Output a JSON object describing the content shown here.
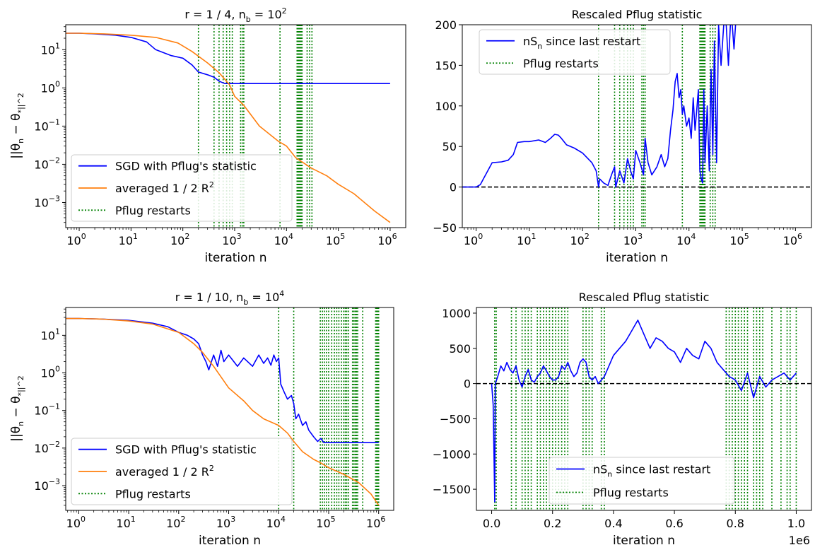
{
  "chart_data": [
    {
      "type": "line",
      "title": "r = 1 / 4, n_b = 10^2",
      "xlabel": "iteration n",
      "ylabel": "||θ_n − θ_*||^2",
      "xscale": "log",
      "yscale": "log",
      "xlim": [
        0.55,
        2000000
      ],
      "ylim": [
        0.00022,
        45
      ],
      "xticks": [
        {
          "value": 1,
          "label": "10",
          "exp": "0"
        },
        {
          "value": 10,
          "label": "10",
          "exp": "1"
        },
        {
          "value": 100,
          "label": "10",
          "exp": "2"
        },
        {
          "value": 1000,
          "label": "10",
          "exp": "3"
        },
        {
          "value": 10000,
          "label": "10",
          "exp": "4"
        },
        {
          "value": 100000,
          "label": "10",
          "exp": "5"
        },
        {
          "value": 1000000,
          "label": "10",
          "exp": "6"
        }
      ],
      "yticks": [
        {
          "value": 10,
          "label": "10",
          "exp": "1"
        },
        {
          "value": 1,
          "label": "10",
          "exp": "0"
        },
        {
          "value": 0.1,
          "label": "10",
          "exp": "−1"
        },
        {
          "value": 0.01,
          "label": "10",
          "exp": "−2"
        },
        {
          "value": 0.001,
          "label": "10",
          "exp": "−3"
        }
      ],
      "legend_position": "lower-left",
      "series": [
        {
          "name": "SGD with Pflug's statistic",
          "color": "#0000ff",
          "x": [
            0.55,
            1,
            2,
            5,
            10,
            20,
            30,
            60,
            100,
            150,
            200,
            300,
            400,
            500,
            600,
            650,
            1000000
          ],
          "y": [
            27,
            27,
            26,
            24,
            21,
            16,
            10,
            7,
            6,
            4,
            2.6,
            2.2,
            1.9,
            1.5,
            1.35,
            1.3,
            1.3
          ]
        },
        {
          "name": "averaged 1 / 2 R^2",
          "color": "#ff7f0e",
          "x": [
            0.55,
            1,
            3,
            10,
            30,
            80,
            150,
            300,
            500,
            800,
            1000,
            1500,
            3000,
            7000,
            10000,
            15000,
            30000,
            60000,
            100000,
            200000,
            500000,
            1000000
          ],
          "y": [
            27,
            27,
            26,
            24,
            21,
            15,
            9,
            4.5,
            2.5,
            1.2,
            0.6,
            0.35,
            0.1,
            0.04,
            0.03,
            0.015,
            0.008,
            0.005,
            0.003,
            0.0017,
            0.0006,
            0.0003
          ]
        },
        {
          "name": "Pflug restarts",
          "color": "#008000",
          "style": "dotted",
          "restart_x": [
            200,
            400,
            500,
            600,
            700,
            800,
            900,
            1300,
            1400,
            1500,
            7500,
            16000,
            16500,
            17000,
            17500,
            18000,
            18500,
            19000,
            19500,
            20000,
            25000,
            28000,
            31000
          ]
        }
      ]
    },
    {
      "type": "line",
      "title": "Rescaled Pflug statistic",
      "xlabel": "iteration n",
      "ylabel": "",
      "xscale": "log",
      "yscale": "linear",
      "xlim": [
        0.55,
        2000000
      ],
      "ylim": [
        -50,
        200
      ],
      "xticks": [
        {
          "value": 1,
          "label": "10",
          "exp": "0"
        },
        {
          "value": 10,
          "label": "10",
          "exp": "1"
        },
        {
          "value": 100,
          "label": "10",
          "exp": "2"
        },
        {
          "value": 1000,
          "label": "10",
          "exp": "3"
        },
        {
          "value": 10000,
          "label": "10",
          "exp": "4"
        },
        {
          "value": 100000,
          "label": "10",
          "exp": "5"
        },
        {
          "value": 1000000,
          "label": "10",
          "exp": "6"
        }
      ],
      "yticks": [
        {
          "value": 200,
          "label": "200"
        },
        {
          "value": 150,
          "label": "150"
        },
        {
          "value": 100,
          "label": "100"
        },
        {
          "value": 50,
          "label": "50"
        },
        {
          "value": 0,
          "label": "0"
        },
        {
          "value": -50,
          "label": "−50"
        }
      ],
      "hline": 0,
      "legend_position": "upper-left",
      "series": [
        {
          "name": "nS_n since last restart",
          "color": "#0000ff",
          "x": [
            0.55,
            1,
            1.2,
            2,
            3,
            4,
            5,
            6,
            8,
            10,
            15,
            20,
            25,
            30,
            35,
            40,
            50,
            70,
            100,
            150,
            180,
            200,
            210,
            250,
            300,
            350,
            400,
            420,
            500,
            600,
            700,
            800,
            900,
            1000,
            1200,
            1400,
            1500,
            1700,
            2000,
            2500,
            3000,
            3500,
            4000,
            4500,
            5000,
            5500,
            6000,
            6500,
            7000,
            7500,
            8000,
            9000,
            10000,
            11000,
            12000,
            13000,
            14000,
            15000,
            16000,
            17000,
            18000,
            19000,
            20000,
            22000,
            24000,
            26000,
            28000,
            30000,
            33000,
            36000,
            40000,
            45000,
            50000,
            55000,
            60000,
            65000,
            70000,
            75000
          ],
          "y": [
            0,
            0,
            3,
            30,
            31,
            33,
            40,
            55,
            56,
            56,
            58,
            55,
            60,
            65,
            64,
            60,
            52,
            48,
            42,
            30,
            20,
            0,
            10,
            5,
            2,
            15,
            25,
            0,
            20,
            5,
            35,
            20,
            10,
            45,
            30,
            15,
            60,
            30,
            15,
            25,
            40,
            25,
            35,
            70,
            95,
            130,
            140,
            110,
            120,
            90,
            100,
            75,
            85,
            60,
            110,
            70,
            95,
            120,
            20,
            10,
            5,
            120,
            30,
            100,
            20,
            145,
            40,
            180,
            30,
            200,
            150,
            200,
            200,
            150,
            200,
            200,
            170,
            200
          ]
        },
        {
          "name": "Pflug restarts",
          "color": "#008000",
          "style": "dotted",
          "restart_x": [
            200,
            400,
            500,
            600,
            700,
            800,
            900,
            1300,
            1400,
            1500,
            7500,
            16000,
            16500,
            17000,
            17500,
            18000,
            18500,
            19000,
            19500,
            20000,
            25000,
            28000,
            31000
          ]
        }
      ]
    },
    {
      "type": "line",
      "title": "r = 1 / 10, n_b = 10^4",
      "xlabel": "iteration n",
      "ylabel": "||θ_n − θ_*||^2",
      "xscale": "log",
      "yscale": "log",
      "xlim": [
        0.55,
        2000000
      ],
      "ylim": [
        0.00022,
        55
      ],
      "xticks": [
        {
          "value": 1,
          "label": "10",
          "exp": "0"
        },
        {
          "value": 10,
          "label": "10",
          "exp": "1"
        },
        {
          "value": 100,
          "label": "10",
          "exp": "2"
        },
        {
          "value": 1000,
          "label": "10",
          "exp": "3"
        },
        {
          "value": 10000,
          "label": "10",
          "exp": "4"
        },
        {
          "value": 100000,
          "label": "10",
          "exp": "5"
        },
        {
          "value": 1000000,
          "label": "10",
          "exp": "6"
        }
      ],
      "yticks": [
        {
          "value": 10,
          "label": "10",
          "exp": "1"
        },
        {
          "value": 1,
          "label": "10",
          "exp": "0"
        },
        {
          "value": 0.1,
          "label": "10",
          "exp": "−1"
        },
        {
          "value": 0.01,
          "label": "10",
          "exp": "−2"
        },
        {
          "value": 0.001,
          "label": "10",
          "exp": "−3"
        }
      ],
      "legend_position": "lower-left",
      "series": [
        {
          "name": "SGD with Pflug's statistic",
          "color": "#0000ff",
          "x": [
            0.55,
            1,
            3,
            10,
            30,
            60,
            100,
            150,
            200,
            250,
            300,
            350,
            400,
            500,
            600,
            700,
            800,
            1000,
            1500,
            2000,
            3000,
            4000,
            5000,
            6000,
            7000,
            8000,
            9000,
            10000,
            11000,
            13000,
            15000,
            18000,
            20000,
            22000,
            25000,
            30000,
            35000,
            40000,
            50000,
            60000,
            70000,
            80000,
            1000000
          ],
          "y": [
            28,
            28,
            27,
            25,
            21,
            17,
            12,
            10,
            8,
            6,
            3,
            2,
            1.2,
            3,
            1.5,
            4,
            2,
            3,
            1.5,
            2.5,
            1.5,
            3,
            1.8,
            2.5,
            1.6,
            3,
            2,
            2.5,
            0.5,
            0.3,
            0.2,
            0.25,
            0.15,
            0.06,
            0.08,
            0.04,
            0.05,
            0.03,
            0.02,
            0.015,
            0.018,
            0.014,
            0.014
          ]
        },
        {
          "name": "averaged 1 / 2 R^2",
          "color": "#ff7f0e",
          "x": [
            0.55,
            1,
            3,
            10,
            30,
            100,
            200,
            300,
            500,
            1000,
            2000,
            3000,
            5000,
            10000,
            15000,
            20000,
            30000,
            50000,
            70000,
            100000,
            200000,
            400000,
            700000,
            1000000
          ],
          "y": [
            28,
            28,
            27,
            24,
            20,
            12,
            6,
            3.5,
            1.5,
            0.4,
            0.18,
            0.1,
            0.06,
            0.04,
            0.025,
            0.015,
            0.008,
            0.005,
            0.004,
            0.003,
            0.002,
            0.0012,
            0.0006,
            0.0003
          ]
        },
        {
          "name": "Pflug restarts",
          "color": "#008000",
          "style": "dotted",
          "restart_x": [
            10000,
            20000,
            68000,
            75000,
            82000,
            90000,
            100000,
            115000,
            130000,
            145000,
            160000,
            180000,
            200000,
            215000,
            230000,
            250000,
            300000,
            320000,
            340000,
            360000,
            380000,
            480000,
            870000,
            900000,
            930000,
            960000,
            990000,
            1000000
          ]
        }
      ]
    },
    {
      "type": "line",
      "title": "Rescaled Pflug statistic",
      "xlabel": "iteration n",
      "ylabel": "",
      "xscale": "linear",
      "yscale": "linear",
      "xlim": [
        -0.05,
        1.05
      ],
      "ylim": [
        -1800,
        1080
      ],
      "x_multiplier_label": "1e6",
      "xticks": [
        {
          "value": 0.0,
          "label": "0.0"
        },
        {
          "value": 0.2,
          "label": "0.2"
        },
        {
          "value": 0.4,
          "label": "0.4"
        },
        {
          "value": 0.6,
          "label": "0.6"
        },
        {
          "value": 0.8,
          "label": "0.8"
        },
        {
          "value": 1.0,
          "label": "1.0"
        }
      ],
      "yticks": [
        {
          "value": 1000,
          "label": "1000"
        },
        {
          "value": 500,
          "label": "500"
        },
        {
          "value": 0,
          "label": "0"
        },
        {
          "value": -500,
          "label": "−500"
        },
        {
          "value": -1000,
          "label": "−1000"
        },
        {
          "value": -1500,
          "label": "−1500"
        }
      ],
      "hline": 0,
      "legend_position": "lower-right",
      "series": [
        {
          "name": "nS_n since last restart",
          "color": "#0000ff",
          "x": [
            0.0,
            0.005,
            0.01,
            0.012,
            0.02,
            0.03,
            0.04,
            0.05,
            0.06,
            0.07,
            0.08,
            0.09,
            0.1,
            0.11,
            0.12,
            0.13,
            0.14,
            0.15,
            0.16,
            0.17,
            0.18,
            0.19,
            0.2,
            0.21,
            0.22,
            0.23,
            0.24,
            0.25,
            0.26,
            0.27,
            0.28,
            0.29,
            0.3,
            0.31,
            0.32,
            0.33,
            0.34,
            0.35,
            0.36,
            0.37,
            0.38,
            0.4,
            0.42,
            0.44,
            0.46,
            0.48,
            0.49,
            0.5,
            0.52,
            0.54,
            0.56,
            0.58,
            0.6,
            0.62,
            0.64,
            0.66,
            0.68,
            0.7,
            0.72,
            0.74,
            0.76,
            0.78,
            0.8,
            0.82,
            0.84,
            0.86,
            0.88,
            0.9,
            0.92,
            0.94,
            0.96,
            0.98,
            1.0
          ],
          "y": [
            0,
            -300,
            -1680,
            0,
            100,
            250,
            180,
            300,
            200,
            150,
            250,
            50,
            -50,
            100,
            200,
            50,
            20,
            100,
            150,
            250,
            180,
            100,
            50,
            50,
            100,
            250,
            200,
            300,
            180,
            100,
            150,
            300,
            350,
            300,
            100,
            50,
            100,
            0,
            50,
            100,
            200,
            400,
            500,
            600,
            750,
            900,
            800,
            700,
            500,
            650,
            600,
            500,
            450,
            300,
            500,
            400,
            350,
            600,
            500,
            300,
            200,
            100,
            50,
            -100,
            150,
            -200,
            100,
            -50,
            50,
            100,
            150,
            50,
            150
          ]
        },
        {
          "name": "Pflug restarts",
          "color": "#008000",
          "style": "dotted",
          "restart_x": [
            0.01,
            0.015,
            0.065,
            0.08,
            0.1,
            0.11,
            0.12,
            0.13,
            0.15,
            0.16,
            0.17,
            0.18,
            0.19,
            0.2,
            0.21,
            0.22,
            0.23,
            0.24,
            0.25,
            0.3,
            0.31,
            0.32,
            0.33,
            0.36,
            0.37,
            0.77,
            0.78,
            0.79,
            0.8,
            0.81,
            0.82,
            0.83,
            0.84,
            0.86,
            0.87,
            0.88,
            0.89,
            0.92,
            0.95,
            0.97,
            0.98,
            1.0
          ]
        }
      ]
    }
  ]
}
